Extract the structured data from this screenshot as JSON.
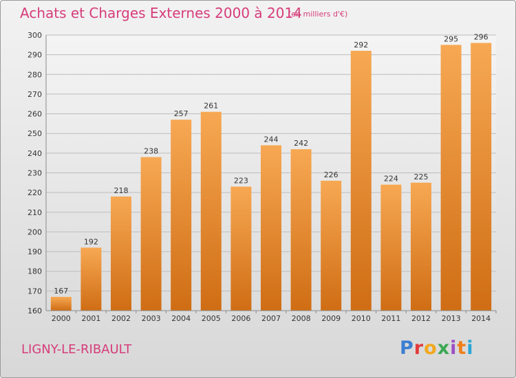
{
  "header": {
    "title": "Achats et Charges Externes 2000 à 2014",
    "unit": "(en milliers d'€)"
  },
  "footer": {
    "commune": "LIGNY-LE-RIBAULT",
    "brand": "Proxiti",
    "brand_colors": [
      "#3b7fd1",
      "#e23b3b",
      "#f2a81e",
      "#3aa853",
      "#9b4fc4",
      "#f07f1c",
      "#2aa6d6"
    ]
  },
  "colors": {
    "bar_top": "#f7a853",
    "bar_bottom": "#cf6d14",
    "accent": "#d63c7a"
  },
  "chart_data": {
    "type": "bar",
    "title": "Achats et Charges Externes 2000 à 2014",
    "unit": "(en milliers d'€)",
    "categories": [
      "2000",
      "2001",
      "2002",
      "2003",
      "2004",
      "2005",
      "2006",
      "2007",
      "2008",
      "2009",
      "2010",
      "2011",
      "2012",
      "2013",
      "2014"
    ],
    "values": [
      167,
      192,
      218,
      238,
      257,
      261,
      223,
      244,
      242,
      226,
      292,
      224,
      225,
      295,
      296
    ],
    "ylim": [
      160,
      300
    ],
    "yticks": [
      160,
      170,
      180,
      190,
      200,
      210,
      220,
      230,
      240,
      250,
      260,
      270,
      280,
      290,
      300
    ],
    "grid": true,
    "legend": "none"
  }
}
